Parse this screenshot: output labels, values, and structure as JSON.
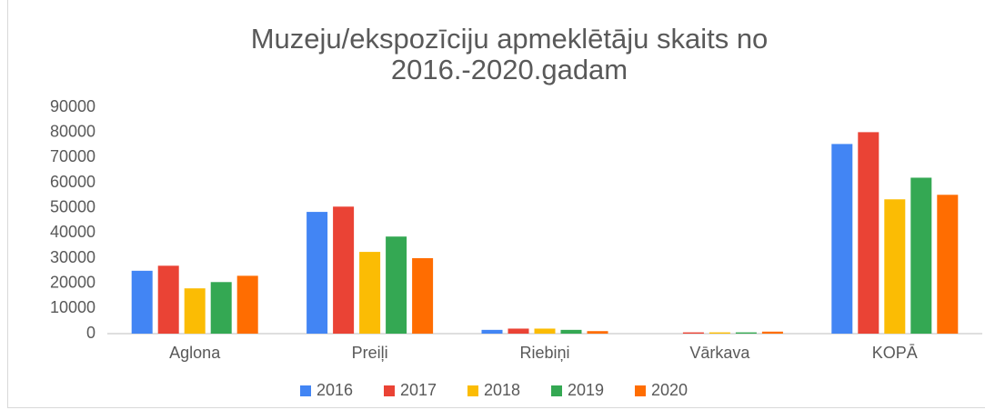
{
  "chart_data": {
    "type": "bar",
    "title": "Muzeju/ekspozīciju apmeklētāju skaits no 2016.-2020.gadam",
    "categories": [
      "Aglona",
      "Preiļi",
      "Riebiņi",
      "Vārkava",
      "KOPĀ"
    ],
    "series": [
      {
        "name": "2016",
        "color": "#4285f4",
        "values": [
          25000,
          48400,
          1500,
          0,
          75400
        ]
      },
      {
        "name": "2017",
        "color": "#ea4335",
        "values": [
          27000,
          50500,
          2000,
          500,
          80100
        ]
      },
      {
        "name": "2018",
        "color": "#fbbc04",
        "values": [
          18000,
          32500,
          2000,
          500,
          53400
        ]
      },
      {
        "name": "2019",
        "color": "#34a853",
        "values": [
          20500,
          38600,
          1500,
          500,
          62000
        ]
      },
      {
        "name": "2020",
        "color": "#ff6d01",
        "values": [
          23000,
          30000,
          1000,
          800,
          55200
        ]
      }
    ],
    "ylim": [
      0,
      90000
    ],
    "yticks": [
      0,
      10000,
      20000,
      30000,
      40000,
      50000,
      60000,
      70000,
      80000,
      90000
    ],
    "grid": false,
    "legend": "bottom"
  }
}
